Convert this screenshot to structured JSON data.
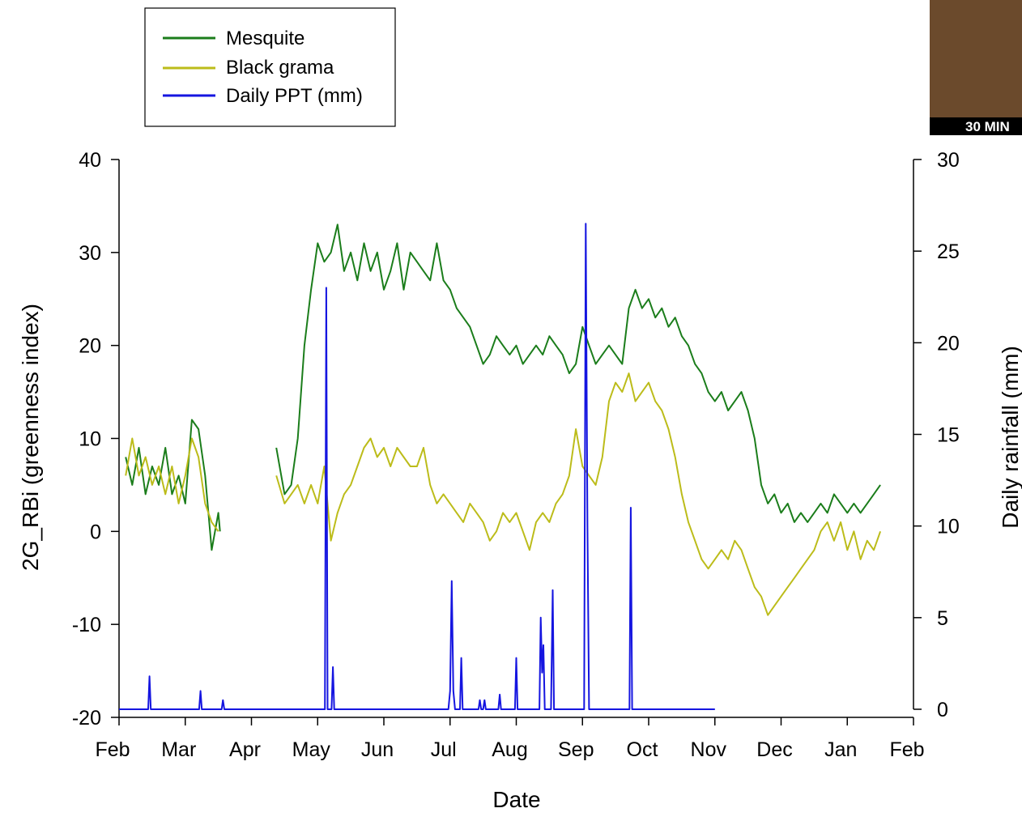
{
  "colors": {
    "mesquite": "#1b7d1b",
    "black_grama": "#bcbc1a",
    "ppt": "#1515e0",
    "axis": "#000000"
  },
  "photo": {
    "caption": "30 MIN"
  },
  "chart_data": {
    "type": "line",
    "title": "",
    "xlabel": "Date",
    "ylabel": "2G_RBi (greenness index)",
    "ylabel_right": "Daily rainfall (mm)",
    "x_domain": [
      "Feb",
      "Feb"
    ],
    "x_ticks": [
      "Feb",
      "Mar",
      "Apr",
      "May",
      "Jun",
      "Jul",
      "Aug",
      "Sep",
      "Oct",
      "Nov",
      "Dec",
      "Jan",
      "Feb"
    ],
    "ylim": [
      -20,
      40
    ],
    "yticks": [
      "-20",
      "-10",
      "0",
      "10",
      "20",
      "30",
      "40"
    ],
    "ylim_right": [
      0,
      30
    ],
    "yticks_right": [
      "0",
      "5",
      "10",
      "15",
      "20",
      "25",
      "30"
    ],
    "legend_position": "top-left",
    "series": [
      {
        "name": "Mesquite",
        "axis": "left",
        "segments": [
          [
            [
              0.2,
              8
            ],
            [
              0.4,
              5
            ],
            [
              0.6,
              9
            ],
            [
              0.8,
              4
            ],
            [
              1.0,
              7
            ],
            [
              1.2,
              5
            ],
            [
              1.4,
              9
            ],
            [
              1.6,
              4
            ],
            [
              1.8,
              6
            ],
            [
              2.0,
              3
            ],
            [
              2.2,
              12
            ],
            [
              2.4,
              11
            ],
            [
              2.6,
              6
            ],
            [
              2.8,
              -2
            ],
            [
              3.0,
              2
            ],
            [
              3.05,
              0
            ]
          ],
          [
            [
              4.75,
              9
            ],
            [
              4.9,
              6
            ],
            [
              5.0,
              4
            ],
            [
              5.2,
              5
            ],
            [
              5.4,
              10
            ],
            [
              5.6,
              20
            ],
            [
              5.8,
              26
            ],
            [
              6.0,
              31
            ],
            [
              6.2,
              29
            ],
            [
              6.4,
              30
            ],
            [
              6.6,
              33
            ],
            [
              6.8,
              28
            ],
            [
              7.0,
              30
            ],
            [
              7.2,
              27
            ],
            [
              7.4,
              31
            ],
            [
              7.6,
              28
            ],
            [
              7.8,
              30
            ],
            [
              8.0,
              26
            ],
            [
              8.2,
              28
            ],
            [
              8.4,
              31
            ],
            [
              8.6,
              26
            ],
            [
              8.8,
              30
            ],
            [
              9.0,
              29
            ],
            [
              9.2,
              28
            ],
            [
              9.4,
              27
            ],
            [
              9.6,
              31
            ],
            [
              9.8,
              27
            ],
            [
              10.0,
              26
            ],
            [
              10.2,
              24
            ],
            [
              10.4,
              23
            ],
            [
              10.6,
              22
            ],
            [
              10.8,
              20
            ],
            [
              11.0,
              18
            ],
            [
              11.2,
              19
            ],
            [
              11.4,
              21
            ],
            [
              11.6,
              20
            ],
            [
              11.8,
              19
            ],
            [
              12.0,
              20
            ],
            [
              12.2,
              18
            ],
            [
              12.4,
              19
            ],
            [
              12.6,
              20
            ],
            [
              12.8,
              19
            ],
            [
              13.0,
              21
            ],
            [
              13.2,
              20
            ],
            [
              13.4,
              19
            ],
            [
              13.6,
              17
            ],
            [
              13.8,
              18
            ],
            [
              14.0,
              22
            ],
            [
              14.2,
              20
            ],
            [
              14.4,
              18
            ],
            [
              14.6,
              19
            ],
            [
              14.8,
              20
            ],
            [
              15.0,
              19
            ],
            [
              15.2,
              18
            ],
            [
              15.4,
              24
            ],
            [
              15.6,
              26
            ],
            [
              15.8,
              24
            ],
            [
              16.0,
              25
            ],
            [
              16.2,
              23
            ],
            [
              16.4,
              24
            ],
            [
              16.6,
              22
            ],
            [
              16.8,
              23
            ],
            [
              17.0,
              21
            ],
            [
              17.2,
              20
            ],
            [
              17.4,
              18
            ],
            [
              17.6,
              17
            ],
            [
              17.8,
              15
            ],
            [
              18.0,
              14
            ],
            [
              18.2,
              15
            ],
            [
              18.4,
              13
            ],
            [
              18.6,
              14
            ],
            [
              18.8,
              15
            ],
            [
              19.0,
              13
            ],
            [
              19.2,
              10
            ],
            [
              19.4,
              5
            ],
            [
              19.6,
              3
            ],
            [
              19.8,
              4
            ],
            [
              20.0,
              2
            ],
            [
              20.2,
              3
            ],
            [
              20.4,
              1
            ],
            [
              20.6,
              2
            ],
            [
              20.8,
              1
            ],
            [
              21.0,
              2
            ],
            [
              21.2,
              3
            ],
            [
              21.4,
              2
            ],
            [
              21.6,
              4
            ],
            [
              21.8,
              3
            ],
            [
              22.0,
              2
            ],
            [
              22.2,
              3
            ],
            [
              22.4,
              2
            ],
            [
              22.6,
              3
            ],
            [
              22.8,
              4
            ],
            [
              23.0,
              5
            ]
          ]
        ]
      },
      {
        "name": "Black grama",
        "axis": "left",
        "segments": [
          [
            [
              0.2,
              6
            ],
            [
              0.4,
              10
            ],
            [
              0.6,
              6
            ],
            [
              0.8,
              8
            ],
            [
              1.0,
              5
            ],
            [
              1.2,
              7
            ],
            [
              1.4,
              4
            ],
            [
              1.6,
              7
            ],
            [
              1.8,
              3
            ],
            [
              2.0,
              6
            ],
            [
              2.2,
              10
            ],
            [
              2.4,
              8
            ],
            [
              2.6,
              3
            ],
            [
              2.8,
              1
            ],
            [
              3.0,
              0
            ]
          ],
          [
            [
              4.75,
              6
            ],
            [
              5.0,
              3
            ],
            [
              5.2,
              4
            ],
            [
              5.4,
              5
            ],
            [
              5.6,
              3
            ],
            [
              5.8,
              5
            ],
            [
              6.0,
              3
            ],
            [
              6.2,
              7
            ],
            [
              6.4,
              -1
            ],
            [
              6.6,
              2
            ],
            [
              6.8,
              4
            ],
            [
              7.0,
              5
            ],
            [
              7.2,
              7
            ],
            [
              7.4,
              9
            ],
            [
              7.6,
              10
            ],
            [
              7.8,
              8
            ],
            [
              8.0,
              9
            ],
            [
              8.2,
              7
            ],
            [
              8.4,
              9
            ],
            [
              8.6,
              8
            ],
            [
              8.8,
              7
            ],
            [
              9.0,
              7
            ],
            [
              9.2,
              9
            ],
            [
              9.4,
              5
            ],
            [
              9.6,
              3
            ],
            [
              9.8,
              4
            ],
            [
              10.0,
              3
            ],
            [
              10.2,
              2
            ],
            [
              10.4,
              1
            ],
            [
              10.6,
              3
            ],
            [
              10.8,
              2
            ],
            [
              11.0,
              1
            ],
            [
              11.2,
              -1
            ],
            [
              11.4,
              0
            ],
            [
              11.6,
              2
            ],
            [
              11.8,
              1
            ],
            [
              12.0,
              2
            ],
            [
              12.2,
              0
            ],
            [
              12.4,
              -2
            ],
            [
              12.6,
              1
            ],
            [
              12.8,
              2
            ],
            [
              13.0,
              1
            ],
            [
              13.2,
              3
            ],
            [
              13.4,
              4
            ],
            [
              13.6,
              6
            ],
            [
              13.8,
              11
            ],
            [
              14.0,
              7
            ],
            [
              14.2,
              6
            ],
            [
              14.4,
              5
            ],
            [
              14.6,
              8
            ],
            [
              14.8,
              14
            ],
            [
              15.0,
              16
            ],
            [
              15.2,
              15
            ],
            [
              15.4,
              17
            ],
            [
              15.6,
              14
            ],
            [
              15.8,
              15
            ],
            [
              16.0,
              16
            ],
            [
              16.2,
              14
            ],
            [
              16.4,
              13
            ],
            [
              16.6,
              11
            ],
            [
              16.8,
              8
            ],
            [
              17.0,
              4
            ],
            [
              17.2,
              1
            ],
            [
              17.4,
              -1
            ],
            [
              17.6,
              -3
            ],
            [
              17.8,
              -4
            ],
            [
              18.0,
              -3
            ],
            [
              18.2,
              -2
            ],
            [
              18.4,
              -3
            ],
            [
              18.6,
              -1
            ],
            [
              18.8,
              -2
            ],
            [
              19.0,
              -4
            ],
            [
              19.2,
              -6
            ],
            [
              19.4,
              -7
            ],
            [
              19.6,
              -9
            ],
            [
              19.8,
              -8
            ],
            [
              20.0,
              -7
            ],
            [
              20.2,
              -6
            ],
            [
              20.4,
              -5
            ],
            [
              20.6,
              -4
            ],
            [
              20.8,
              -3
            ],
            [
              21.0,
              -2
            ],
            [
              21.2,
              0
            ],
            [
              21.4,
              1
            ],
            [
              21.6,
              -1
            ],
            [
              21.8,
              1
            ],
            [
              22.0,
              -2
            ],
            [
              22.2,
              0
            ],
            [
              22.4,
              -3
            ],
            [
              22.6,
              -1
            ],
            [
              22.8,
              -2
            ],
            [
              23.0,
              0
            ]
          ]
        ]
      },
      {
        "name": "Daily PPT (mm)",
        "axis": "right",
        "segments": [
          [
            [
              0,
              0
            ],
            [
              0.88,
              0
            ],
            [
              0.92,
              1.8
            ],
            [
              0.96,
              0
            ],
            [
              2.42,
              0
            ],
            [
              2.46,
              1
            ],
            [
              2.5,
              0
            ],
            [
              3.1,
              0
            ],
            [
              3.14,
              0.5
            ],
            [
              3.18,
              0
            ],
            [
              6.22,
              0
            ],
            [
              6.26,
              23
            ],
            [
              6.3,
              0
            ],
            [
              6.42,
              0
            ],
            [
              6.46,
              2.3
            ],
            [
              6.5,
              0
            ],
            [
              9.95,
              0
            ],
            [
              10.0,
              1
            ],
            [
              10.05,
              7
            ],
            [
              10.1,
              1
            ],
            [
              10.15,
              0
            ],
            [
              10.3,
              0
            ],
            [
              10.34,
              2.8
            ],
            [
              10.38,
              0
            ],
            [
              10.86,
              0
            ],
            [
              10.9,
              0.5
            ],
            [
              10.94,
              0
            ],
            [
              11.0,
              0
            ],
            [
              11.04,
              0.5
            ],
            [
              11.08,
              0
            ],
            [
              11.46,
              0
            ],
            [
              11.5,
              0.8
            ],
            [
              11.54,
              0
            ],
            [
              11.96,
              0
            ],
            [
              12.0,
              2.8
            ],
            [
              12.04,
              0
            ],
            [
              12.7,
              0
            ],
            [
              12.74,
              5
            ],
            [
              12.78,
              2
            ],
            [
              12.82,
              3.5
            ],
            [
              12.86,
              0
            ],
            [
              13.05,
              0
            ],
            [
              13.1,
              6.5
            ],
            [
              13.14,
              0
            ],
            [
              14.05,
              0
            ],
            [
              14.1,
              26.5
            ],
            [
              14.15,
              10
            ],
            [
              14.2,
              0
            ],
            [
              15.42,
              0
            ],
            [
              15.46,
              11
            ],
            [
              15.5,
              0
            ],
            [
              18.0,
              0
            ]
          ]
        ]
      }
    ]
  }
}
